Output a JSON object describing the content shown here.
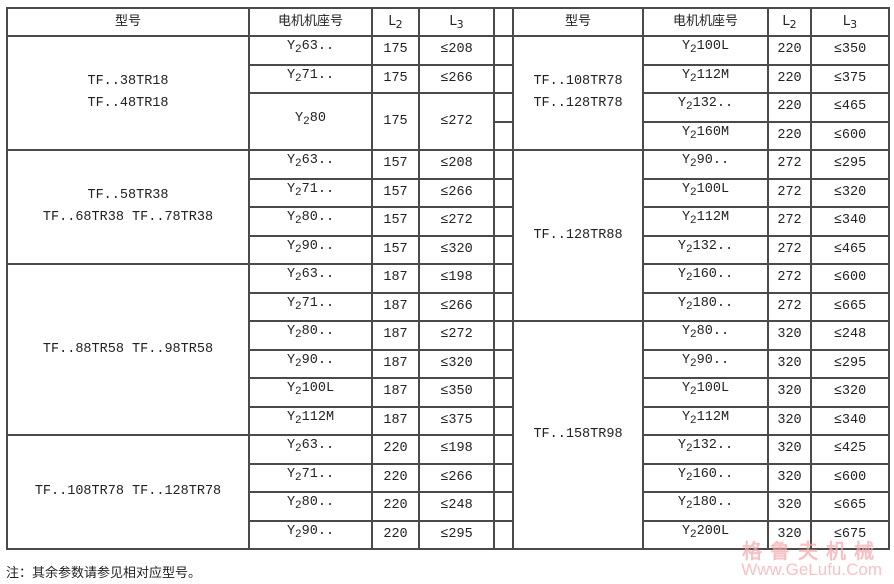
{
  "headers": {
    "model": "型号",
    "motor": "电机机座号",
    "l2_base": "L",
    "l2_sub": "2",
    "l3_base": "L",
    "l3_sub": "3"
  },
  "left_groups": [
    {
      "models": [
        "TF..38TR18",
        "TF..48TR18"
      ],
      "rows": [
        {
          "motor": {
            "prefix": "Y",
            "sub": "2",
            "frame": "63.."
          },
          "l2": "175",
          "l3": "≤208"
        },
        {
          "motor": {
            "prefix": "Y",
            "sub": "2",
            "frame": "71.."
          },
          "l2": "175",
          "l3": "≤266"
        },
        {
          "motor": {
            "prefix": "Y",
            "sub": "2",
            "frame": "80"
          },
          "l2": "175",
          "l3": "≤272",
          "tall": true
        }
      ]
    },
    {
      "models": [
        "TF..58TR38",
        "TF..68TR38 TF..78TR38"
      ],
      "rows": [
        {
          "motor": {
            "prefix": "Y",
            "sub": "2",
            "frame": "63.."
          },
          "l2": "157",
          "l3": "≤208"
        },
        {
          "motor": {
            "prefix": "Y",
            "sub": "2",
            "frame": "71.."
          },
          "l2": "157",
          "l3": "≤266"
        },
        {
          "motor": {
            "prefix": "Y",
            "sub": "2",
            "frame": "80.."
          },
          "l2": "157",
          "l3": "≤272"
        },
        {
          "motor": {
            "prefix": "Y",
            "sub": "2",
            "frame": "90.."
          },
          "l2": "157",
          "l3": "≤320"
        }
      ]
    },
    {
      "models": [
        "TF..88TR58 TF..98TR58"
      ],
      "rows": [
        {
          "motor": {
            "prefix": "Y",
            "sub": "2",
            "frame": "63.."
          },
          "l2": "187",
          "l3": "≤198"
        },
        {
          "motor": {
            "prefix": "Y",
            "sub": "2",
            "frame": "71.."
          },
          "l2": "187",
          "l3": "≤266"
        },
        {
          "motor": {
            "prefix": "Y",
            "sub": "2",
            "frame": "80.."
          },
          "l2": "187",
          "l3": "≤272"
        },
        {
          "motor": {
            "prefix": "Y",
            "sub": "2",
            "frame": "90.."
          },
          "l2": "187",
          "l3": "≤320"
        },
        {
          "motor": {
            "prefix": "Y",
            "sub": "2",
            "frame": "100L"
          },
          "l2": "187",
          "l3": "≤350"
        },
        {
          "motor": {
            "prefix": "Y",
            "sub": "2",
            "frame": "112M"
          },
          "l2": "187",
          "l3": "≤375"
        }
      ]
    },
    {
      "models": [
        "TF..108TR78 TF..128TR78"
      ],
      "rows": [
        {
          "motor": {
            "prefix": "Y",
            "sub": "2",
            "frame": "63.."
          },
          "l2": "220",
          "l3": "≤198"
        },
        {
          "motor": {
            "prefix": "Y",
            "sub": "2",
            "frame": "71.."
          },
          "l2": "220",
          "l3": "≤266"
        },
        {
          "motor": {
            "prefix": "Y",
            "sub": "2",
            "frame": "80.."
          },
          "l2": "220",
          "l3": "≤248"
        },
        {
          "motor": {
            "prefix": "Y",
            "sub": "2",
            "frame": "90.."
          },
          "l2": "220",
          "l3": "≤295"
        }
      ]
    }
  ],
  "right_groups": [
    {
      "models": [
        "TF..108TR78",
        "TF..128TR78"
      ],
      "rows": [
        {
          "motor": {
            "prefix": "Y",
            "sub": "2",
            "frame": "100L"
          },
          "l2": "220",
          "l3": "≤350"
        },
        {
          "motor": {
            "prefix": "Y",
            "sub": "2",
            "frame": "112M"
          },
          "l2": "220",
          "l3": "≤375"
        },
        {
          "motor": {
            "prefix": "Y",
            "sub": "2",
            "frame": "132.."
          },
          "l2": "220",
          "l3": "≤465"
        },
        {
          "motor": {
            "prefix": "Y",
            "sub": "2",
            "frame": "160M"
          },
          "l2": "220",
          "l3": "≤600"
        }
      ]
    },
    {
      "models": [
        "TF..128TR88"
      ],
      "rows": [
        {
          "motor": {
            "prefix": "Y",
            "sub": "2",
            "frame": "90.."
          },
          "l2": "272",
          "l3": "≤295"
        },
        {
          "motor": {
            "prefix": "Y",
            "sub": "2",
            "frame": "100L"
          },
          "l2": "272",
          "l3": "≤320"
        },
        {
          "motor": {
            "prefix": "Y",
            "sub": "2",
            "frame": "112M"
          },
          "l2": "272",
          "l3": "≤340"
        },
        {
          "motor": {
            "prefix": "Y",
            "sub": "2",
            "frame": "132.."
          },
          "l2": "272",
          "l3": "≤465"
        },
        {
          "motor": {
            "prefix": "Y",
            "sub": "2",
            "frame": "160.."
          },
          "l2": "272",
          "l3": "≤600"
        },
        {
          "motor": {
            "prefix": "Y",
            "sub": "2",
            "frame": "180.."
          },
          "l2": "272",
          "l3": "≤665"
        }
      ]
    },
    {
      "models": [
        "TF..158TR98"
      ],
      "rows": [
        {
          "motor": {
            "prefix": "Y",
            "sub": "2",
            "frame": "80.."
          },
          "l2": "320",
          "l3": "≤248"
        },
        {
          "motor": {
            "prefix": "Y",
            "sub": "2",
            "frame": "90.."
          },
          "l2": "320",
          "l3": "≤295"
        },
        {
          "motor": {
            "prefix": "Y",
            "sub": "2",
            "frame": "100L"
          },
          "l2": "320",
          "l3": "≤320"
        },
        {
          "motor": {
            "prefix": "Y",
            "sub": "2",
            "frame": "112M"
          },
          "l2": "320",
          "l3": "≤340"
        },
        {
          "motor": {
            "prefix": "Y",
            "sub": "2",
            "frame": "132.."
          },
          "l2": "320",
          "l3": "≤425"
        },
        {
          "motor": {
            "prefix": "Y",
            "sub": "2",
            "frame": "160.."
          },
          "l2": "320",
          "l3": "≤600"
        },
        {
          "motor": {
            "prefix": "Y",
            "sub": "2",
            "frame": "180.."
          },
          "l2": "320",
          "l3": "≤665"
        },
        {
          "motor": {
            "prefix": "Y",
            "sub": "2",
            "frame": "200L"
          },
          "l2": "320",
          "l3": "≤675"
        }
      ]
    }
  ],
  "note": "注：其余参数请参见相对应型号。",
  "watermark": {
    "cn": "格鲁夫机械",
    "en": "Www.GeLufu.Com",
    "color": "#f4a8ac"
  }
}
